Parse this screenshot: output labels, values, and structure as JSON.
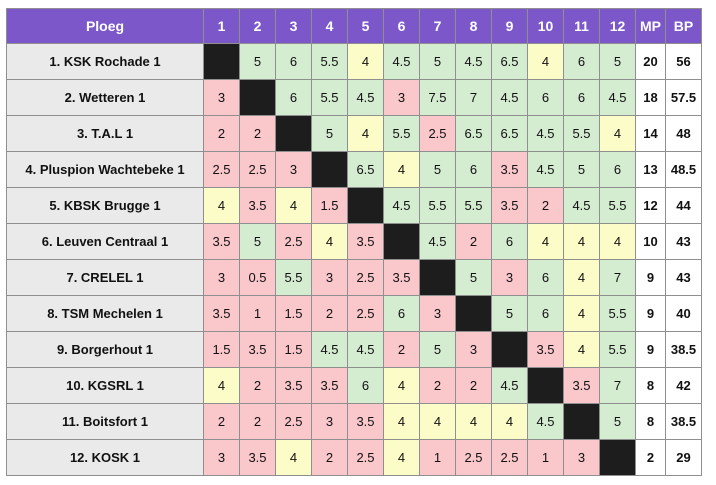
{
  "header": {
    "team_label": "Ploeg",
    "rounds": [
      "1",
      "2",
      "3",
      "4",
      "5",
      "6",
      "7",
      "8",
      "9",
      "10",
      "11",
      "12"
    ],
    "mp_label": "MP",
    "bp_label": "BP"
  },
  "colors": {
    "header_bg": "#7b57c9",
    "win": "#d4ecd0",
    "draw": "#fcfcc8",
    "loss": "#fac8cb",
    "self": "#1d1d1d",
    "team_bg": "#eaeaea"
  },
  "rows": [
    {
      "team": "1. KSK Rochade 1",
      "cells": [
        "",
        "5",
        "6",
        "5.5",
        "4",
        "4.5",
        "5",
        "4.5",
        "6.5",
        "4",
        "6",
        "5"
      ],
      "mp": "20",
      "bp": "56"
    },
    {
      "team": "2. Wetteren 1",
      "cells": [
        "3",
        "",
        "6",
        "5.5",
        "4.5",
        "3",
        "7.5",
        "7",
        "4.5",
        "6",
        "6",
        "4.5"
      ],
      "mp": "18",
      "bp": "57.5"
    },
    {
      "team": "3. T.A.L 1",
      "cells": [
        "2",
        "2",
        "",
        "5",
        "4",
        "5.5",
        "2.5",
        "6.5",
        "6.5",
        "4.5",
        "5.5",
        "4"
      ],
      "mp": "14",
      "bp": "48"
    },
    {
      "team": "4. Pluspion Wachtebeke 1",
      "cells": [
        "2.5",
        "2.5",
        "3",
        "",
        "6.5",
        "4",
        "5",
        "6",
        "3.5",
        "4.5",
        "5",
        "6"
      ],
      "mp": "13",
      "bp": "48.5"
    },
    {
      "team": "5. KBSK Brugge 1",
      "cells": [
        "4",
        "3.5",
        "4",
        "1.5",
        "",
        "4.5",
        "5.5",
        "5.5",
        "3.5",
        "2",
        "4.5",
        "5.5"
      ],
      "mp": "12",
      "bp": "44"
    },
    {
      "team": "6. Leuven Centraal 1",
      "cells": [
        "3.5",
        "5",
        "2.5",
        "4",
        "3.5",
        "",
        "4.5",
        "2",
        "6",
        "4",
        "4",
        "4"
      ],
      "mp": "10",
      "bp": "43"
    },
    {
      "team": "7. CRELEL 1",
      "cells": [
        "3",
        "0.5",
        "5.5",
        "3",
        "2.5",
        "3.5",
        "",
        "5",
        "3",
        "6",
        "4",
        "7"
      ],
      "mp": "9",
      "bp": "43"
    },
    {
      "team": "8. TSM Mechelen 1",
      "cells": [
        "3.5",
        "1",
        "1.5",
        "2",
        "2.5",
        "6",
        "3",
        "",
        "5",
        "6",
        "4",
        "5.5"
      ],
      "mp": "9",
      "bp": "40"
    },
    {
      "team": "9. Borgerhout 1",
      "cells": [
        "1.5",
        "3.5",
        "1.5",
        "4.5",
        "4.5",
        "2",
        "5",
        "3",
        "",
        "3.5",
        "4",
        "5.5"
      ],
      "mp": "9",
      "bp": "38.5"
    },
    {
      "team": "10. KGSRL 1",
      "cells": [
        "4",
        "2",
        "3.5",
        "3.5",
        "6",
        "4",
        "2",
        "2",
        "4.5",
        "",
        "3.5",
        "7"
      ],
      "mp": "8",
      "bp": "42"
    },
    {
      "team": "11. Boitsfort 1",
      "cells": [
        "2",
        "2",
        "2.5",
        "3",
        "3.5",
        "4",
        "4",
        "4",
        "4",
        "4.5",
        "",
        "5"
      ],
      "mp": "8",
      "bp": "38.5"
    },
    {
      "team": "12. KOSK 1",
      "cells": [
        "3",
        "3.5",
        "4",
        "2",
        "2.5",
        "4",
        "1",
        "2.5",
        "2.5",
        "1",
        "3",
        ""
      ],
      "mp": "2",
      "bp": "29"
    }
  ]
}
